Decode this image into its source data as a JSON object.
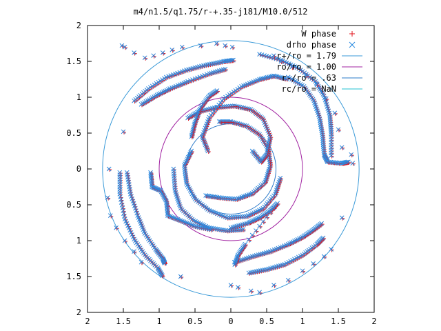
{
  "chart_data": {
    "type": "scatter",
    "title": "m4/n1.5/q1.75/r-+.35-j181/M10.0/512",
    "xlabel": "",
    "ylabel": "",
    "xlim": [
      -2,
      2
    ],
    "ylim": [
      -2,
      2
    ],
    "x_ticks": [
      -2,
      -1.5,
      -1,
      -0.5,
      0,
      0.5,
      1,
      1.5,
      2
    ],
    "y_ticks": [
      -2,
      -1.5,
      -1,
      -0.5,
      0,
      0.5,
      1,
      1.5,
      2
    ],
    "x_tick_labels": [
      "2",
      "1.5",
      "1",
      "0.5",
      "0",
      "0.5",
      "1",
      "1.5",
      "2"
    ],
    "y_tick_labels": [
      "2",
      "1.5",
      "1",
      "0.5",
      "0",
      "0.5",
      "1",
      "1.5",
      "2"
    ],
    "grid": false,
    "legend_position": "top-right",
    "colors": {
      "w_phase": "#e0101a",
      "drho_phase": "#2a8ae0",
      "r_plus": "#3a9ad8",
      "ro": "#a020a0",
      "r_minus": "#2a78c8",
      "rc": "#20c0d0"
    },
    "legend": [
      {
        "label": "W phase",
        "marker": "+",
        "color_key": "w_phase"
      },
      {
        "label": "drho phase",
        "marker": "x",
        "color_key": "drho_phase"
      },
      {
        "label": "r+/ro = 1.79",
        "marker": "line",
        "color_key": "r_plus"
      },
      {
        "label": "ro/ro = 1.00",
        "marker": "line",
        "color_key": "ro"
      },
      {
        "label": "r-/ro = .63",
        "marker": "line",
        "color_key": "r_minus"
      },
      {
        "label": "rc/ro = NaN",
        "marker": "line",
        "color_key": "rc"
      }
    ],
    "circles": [
      {
        "name": "r+/ro = 1.79",
        "r": 1.79,
        "color_key": "r_plus"
      },
      {
        "name": "ro/ro = 1.00",
        "r": 1.0,
        "color_key": "ro"
      },
      {
        "name": "r-/ro = .63",
        "r": 0.63,
        "color_key": "r_minus"
      }
    ],
    "spiral_series": [
      {
        "name": "inner-spiral-1",
        "points": [
          [
            -0.35,
            -0.37
          ],
          [
            -0.15,
            -0.4
          ],
          [
            0.08,
            -0.42
          ],
          [
            0.3,
            -0.34
          ],
          [
            0.48,
            -0.18
          ],
          [
            0.55,
            0.05
          ],
          [
            0.52,
            0.28
          ],
          [
            0.4,
            0.48
          ],
          [
            0.22,
            0.6
          ],
          [
            0.0,
            0.66
          ],
          [
            -0.18,
            0.66
          ]
        ]
      },
      {
        "name": "inner-spiral-2",
        "points": [
          [
            0.3,
            0.25
          ],
          [
            0.42,
            0.1
          ],
          [
            0.5,
            0.2
          ],
          [
            0.55,
            0.45
          ],
          [
            0.45,
            0.7
          ],
          [
            0.28,
            0.83
          ],
          [
            0.05,
            0.88
          ],
          [
            -0.2,
            0.86
          ],
          [
            -0.45,
            0.8
          ],
          [
            -0.62,
            0.7
          ]
        ]
      },
      {
        "name": "inner-spiral-3",
        "points": [
          [
            -0.55,
            0.25
          ],
          [
            -0.65,
            0.05
          ],
          [
            -0.62,
            -0.2
          ],
          [
            -0.5,
            -0.42
          ],
          [
            -0.3,
            -0.58
          ],
          [
            -0.05,
            -0.68
          ],
          [
            0.22,
            -0.66
          ],
          [
            0.45,
            -0.55
          ],
          [
            0.62,
            -0.35
          ],
          [
            0.7,
            -0.1
          ]
        ]
      },
      {
        "name": "inner-spiral-4",
        "points": [
          [
            -0.32,
            0.25
          ],
          [
            -0.4,
            0.45
          ],
          [
            -0.3,
            0.72
          ],
          [
            -0.1,
            0.98
          ],
          [
            0.15,
            1.15
          ],
          [
            0.4,
            1.25
          ],
          [
            0.6,
            1.3
          ],
          [
            0.8,
            1.25
          ]
        ]
      },
      {
        "name": "arm-left",
        "points": [
          [
            -0.8,
            0.0
          ],
          [
            -0.78,
            -0.3
          ],
          [
            -0.7,
            -0.55
          ],
          [
            -0.52,
            -0.72
          ],
          [
            -0.3,
            -0.82
          ],
          [
            -0.05,
            -0.86
          ],
          [
            0.2,
            -0.84
          ]
        ]
      },
      {
        "name": "arm-top",
        "points": [
          [
            -1.35,
            0.95
          ],
          [
            -1.15,
            1.12
          ],
          [
            -0.9,
            1.28
          ],
          [
            -0.62,
            1.38
          ],
          [
            -0.35,
            1.45
          ],
          [
            -0.1,
            1.5
          ],
          [
            0.05,
            1.52
          ]
        ]
      },
      {
        "name": "arm-top-right",
        "points": [
          [
            0.4,
            1.6
          ],
          [
            0.7,
            1.52
          ],
          [
            0.95,
            1.4
          ],
          [
            1.18,
            1.22
          ],
          [
            1.3,
            1.02
          ],
          [
            1.38,
            0.75
          ],
          [
            1.4,
            0.48
          ],
          [
            1.4,
            0.15
          ]
        ]
      },
      {
        "name": "arm-right",
        "points": [
          [
            0.8,
            1.28
          ],
          [
            1.02,
            1.15
          ],
          [
            1.16,
            0.95
          ],
          [
            1.24,
            0.7
          ],
          [
            1.28,
            0.45
          ],
          [
            1.3,
            0.2
          ],
          [
            1.35,
            0.1
          ],
          [
            1.55,
            0.08
          ],
          [
            1.65,
            0.1
          ]
        ]
      },
      {
        "name": "arm-bottom-right",
        "points": [
          [
            0.05,
            -1.3
          ],
          [
            0.3,
            -1.22
          ],
          [
            0.55,
            -1.15
          ],
          [
            0.8,
            -1.05
          ],
          [
            1.0,
            -0.95
          ],
          [
            1.15,
            -0.85
          ],
          [
            1.28,
            -0.75
          ]
        ]
      },
      {
        "name": "arm-bottom-right-2",
        "points": [
          [
            0.25,
            -1.45
          ],
          [
            0.5,
            -1.4
          ],
          [
            0.75,
            -1.33
          ],
          [
            1.0,
            -1.2
          ],
          [
            1.2,
            -1.05
          ],
          [
            1.3,
            -0.95
          ]
        ]
      },
      {
        "name": "arm-bottom",
        "points": [
          [
            0.0,
            -0.82
          ],
          [
            0.25,
            -0.75
          ],
          [
            0.4,
            -0.68
          ],
          [
            0.55,
            -0.58
          ],
          [
            0.65,
            -0.48
          ],
          [
            0.2,
            -1.05
          ],
          [
            0.1,
            -1.2
          ],
          [
            0.05,
            -1.35
          ]
        ]
      },
      {
        "name": "arm-left-outer",
        "points": [
          [
            -1.55,
            -0.05
          ],
          [
            -1.55,
            -0.35
          ],
          [
            -1.48,
            -0.7
          ],
          [
            -1.35,
            -0.98
          ],
          [
            -1.2,
            -1.2
          ],
          [
            -1.02,
            -1.38
          ],
          [
            -0.95,
            -1.5
          ]
        ]
      },
      {
        "name": "arm-left-inner",
        "points": [
          [
            -1.12,
            -0.05
          ],
          [
            -1.1,
            -0.25
          ],
          [
            -0.98,
            -0.3
          ],
          [
            -0.9,
            -0.45
          ],
          [
            -0.88,
            -0.65
          ],
          [
            -0.7,
            -0.72
          ],
          [
            -0.5,
            -0.8
          ],
          [
            -0.25,
            -0.85
          ]
        ]
      },
      {
        "name": "arm-left-mid",
        "points": [
          [
            -1.45,
            -0.05
          ],
          [
            -1.4,
            -0.35
          ],
          [
            -1.3,
            -0.65
          ],
          [
            -1.2,
            -0.9
          ],
          [
            -1.05,
            -1.12
          ],
          [
            -0.95,
            -1.25
          ],
          [
            -0.92,
            -1.32
          ]
        ]
      },
      {
        "name": "arm-upper-left",
        "points": [
          [
            -1.25,
            0.9
          ],
          [
            -1.05,
            1.02
          ],
          [
            -0.85,
            1.12
          ],
          [
            -0.6,
            1.22
          ],
          [
            -0.3,
            1.33
          ],
          [
            -0.05,
            1.4
          ]
        ]
      },
      {
        "name": "arm-center-top",
        "points": [
          [
            -0.55,
            0.45
          ],
          [
            -0.5,
            0.65
          ],
          [
            -0.42,
            0.86
          ],
          [
            -0.3,
            1.02
          ],
          [
            -0.18,
            1.1
          ]
        ]
      }
    ],
    "scatter_points": [
      [
        -1.52,
        1.72
      ],
      [
        -1.48,
        1.7
      ],
      [
        -1.35,
        1.62
      ],
      [
        -1.2,
        1.55
      ],
      [
        -1.08,
        1.58
      ],
      [
        -0.95,
        1.62
      ],
      [
        -0.82,
        1.66
      ],
      [
        -0.68,
        1.7
      ],
      [
        -0.42,
        1.72
      ],
      [
        -0.2,
        1.75
      ],
      [
        -0.08,
        1.72
      ],
      [
        0.02,
        1.7
      ],
      [
        0.6,
        1.58
      ],
      [
        0.7,
        1.5
      ],
      [
        0.85,
        1.42
      ],
      [
        1.05,
        1.3
      ],
      [
        1.2,
        1.18
      ],
      [
        1.33,
        0.98
      ],
      [
        1.45,
        0.78
      ],
      [
        1.5,
        0.55
      ],
      [
        1.55,
        0.3
      ],
      [
        1.68,
        0.2
      ],
      [
        1.7,
        0.08
      ],
      [
        1.55,
        -0.68
      ],
      [
        -1.5,
        0.52
      ],
      [
        -1.7,
        0.0
      ],
      [
        -1.72,
        -0.4
      ],
      [
        -1.68,
        -0.65
      ],
      [
        -1.6,
        -0.82
      ],
      [
        -1.48,
        -1.0
      ],
      [
        -1.35,
        -1.15
      ],
      [
        -1.25,
        -1.3
      ],
      [
        -0.7,
        -1.5
      ],
      [
        0.0,
        -1.62
      ],
      [
        0.1,
        -1.65
      ],
      [
        0.28,
        -1.7
      ],
      [
        0.4,
        -1.72
      ],
      [
        0.6,
        -1.62
      ],
      [
        0.8,
        -1.55
      ],
      [
        1.0,
        -1.42
      ],
      [
        1.15,
        -1.32
      ],
      [
        1.3,
        -1.22
      ],
      [
        1.4,
        -1.12
      ]
    ]
  }
}
